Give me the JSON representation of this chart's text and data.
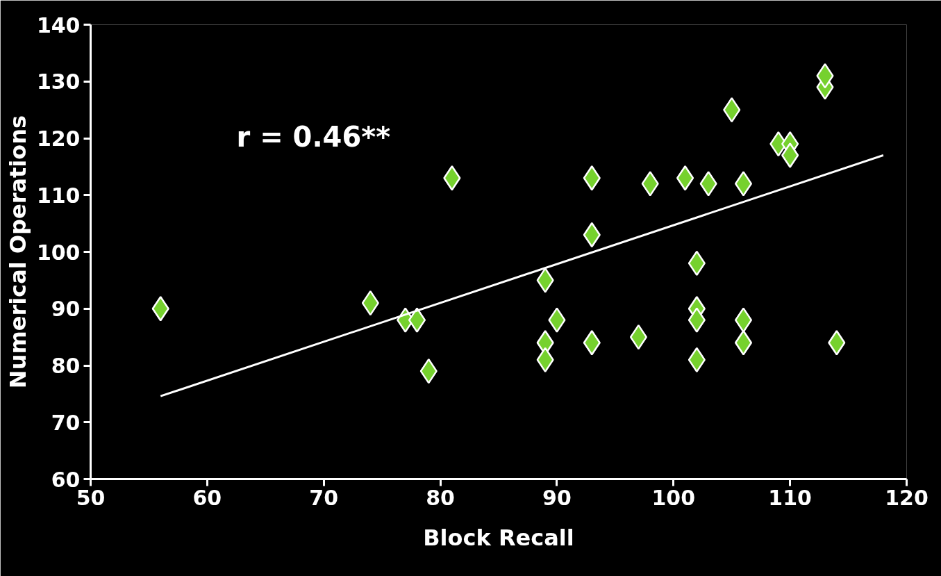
{
  "chart_data": {
    "type": "scatter",
    "xlabel": "Block Recall",
    "ylabel": "Numerical Operations",
    "annotations": [
      "r = 0.46**"
    ],
    "xlim": [
      50,
      120
    ],
    "xticks": [
      50,
      60,
      70,
      80,
      90,
      100,
      110,
      120
    ],
    "ylim": [
      60,
      140
    ],
    "yticks": [
      60,
      70,
      80,
      90,
      100,
      110,
      120,
      130,
      140
    ],
    "grid": false,
    "series": [
      {
        "marker": "diamond",
        "color": "#76d12e",
        "x": [
          56,
          74,
          77,
          78,
          79,
          81,
          89,
          89,
          89,
          90,
          93,
          93,
          93,
          97,
          98,
          101,
          103,
          102,
          102,
          102,
          102,
          105,
          106,
          106,
          106,
          109,
          110,
          110,
          113,
          113,
          114
        ],
        "values": [
          90,
          91,
          88,
          88,
          79,
          113,
          95,
          84,
          81,
          88,
          113,
          103,
          84,
          85,
          112,
          113,
          112,
          98,
          90,
          88,
          81,
          125,
          112,
          88,
          84,
          119,
          119,
          117,
          129,
          131,
          84
        ]
      },
      {
        "type": "line",
        "color": "#ffffff",
        "x": [
          56,
          118
        ],
        "values": [
          74.6,
          117
        ]
      }
    ]
  }
}
